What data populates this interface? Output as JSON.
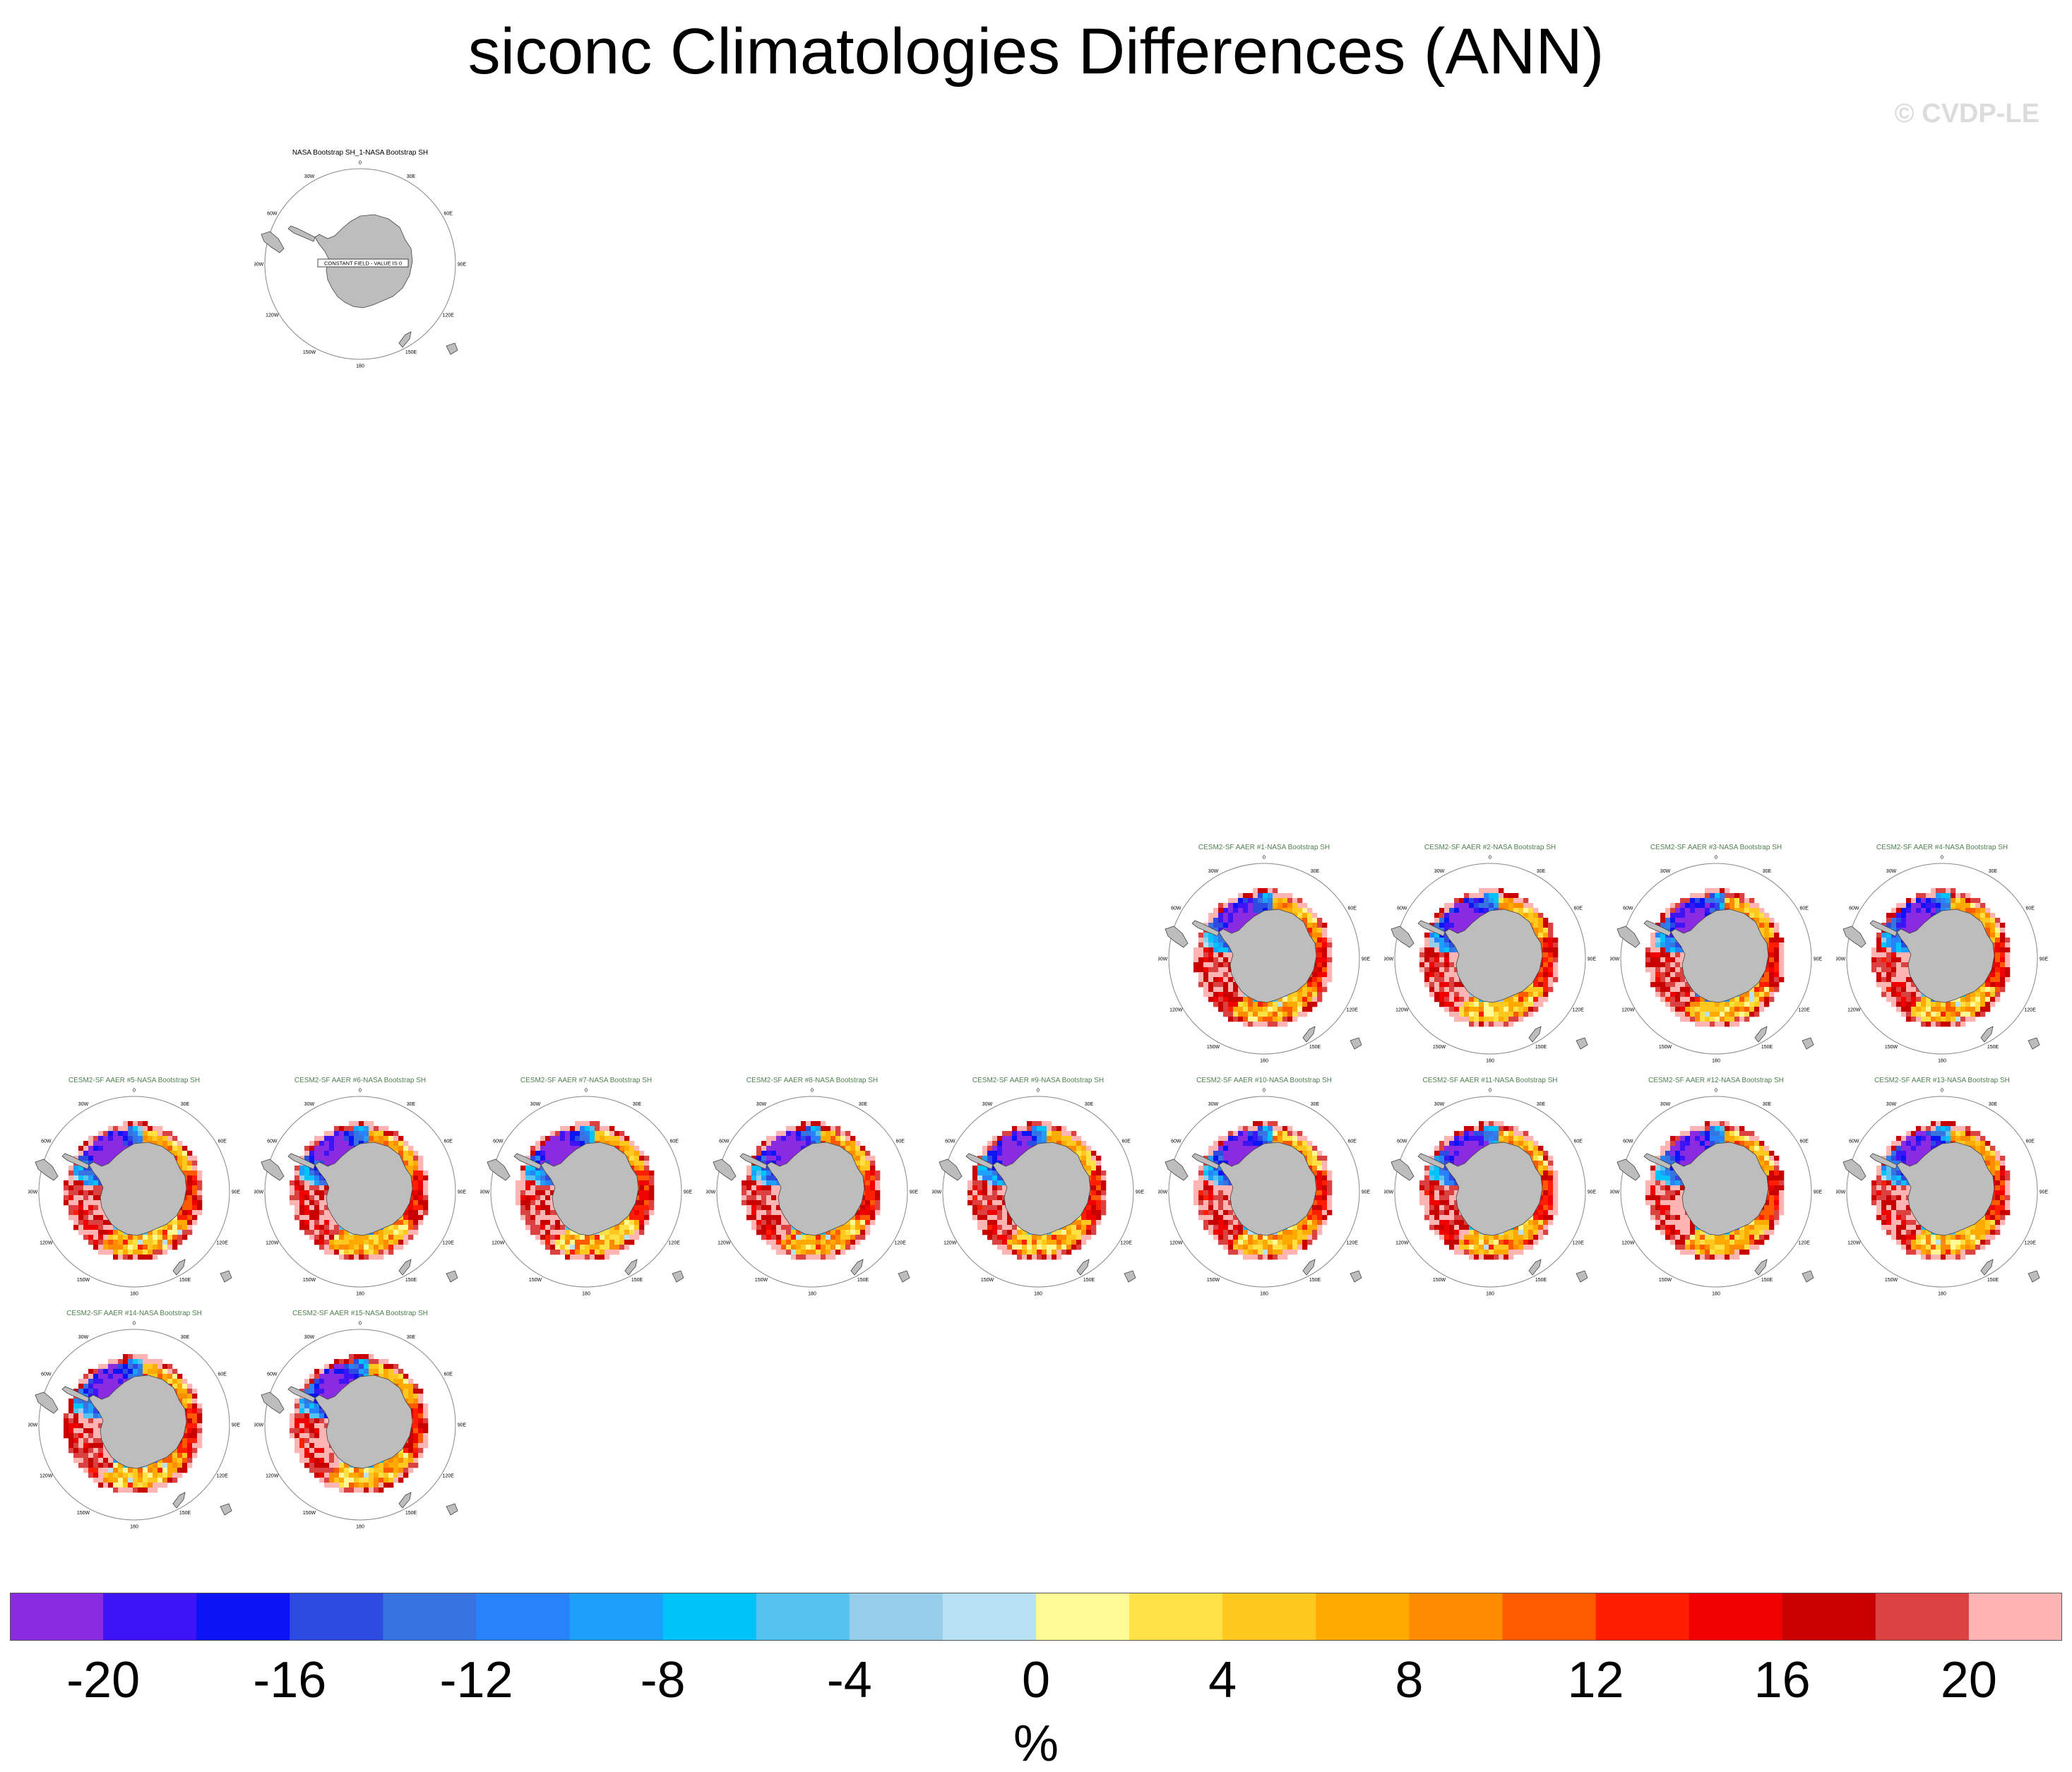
{
  "title": "siconc Climatologies Differences (ANN)",
  "watermark": "© CVDP-LE",
  "colorbar": {
    "unit": "%",
    "tick_labels": [
      "-20",
      "-16",
      "-12",
      "-8",
      "-4",
      "0",
      "4",
      "8",
      "12",
      "16",
      "20"
    ],
    "colors": [
      "#8a2be2",
      "#3c14f5",
      "#0a14f5",
      "#2d4be1",
      "#3773e1",
      "#2882fa",
      "#1ea0fa",
      "#00c3fa",
      "#55c3f0",
      "#96cdeb",
      "#b9e1f5",
      "#fffa96",
      "#ffe145",
      "#ffc81e",
      "#ffaa00",
      "#ff8c00",
      "#ff5a00",
      "#ff1e00",
      "#f00000",
      "#c80000",
      "#dc4141",
      "#ffb4b4"
    ]
  },
  "map_labels": {
    "lon": [
      "0",
      "30E",
      "60E",
      "90E",
      "120E",
      "150E",
      "180",
      "150W",
      "120W",
      "90W",
      "60W",
      "30W"
    ],
    "constant_field": "CONSTANT FIELD - VALUE IS 0"
  },
  "panels": [
    {
      "title": "NASA Bootstrap SH_1-NASA Bootstrap SH",
      "kind": "obs"
    },
    {
      "title": "CESM2-SF AAER #1-NASA Bootstrap SH",
      "kind": "model"
    },
    {
      "title": "CESM2-SF AAER #2-NASA Bootstrap SH",
      "kind": "model"
    },
    {
      "title": "CESM2-SF AAER #3-NASA Bootstrap SH",
      "kind": "model"
    },
    {
      "title": "CESM2-SF AAER #4-NASA Bootstrap SH",
      "kind": "model"
    },
    {
      "title": "CESM2-SF AAER #5-NASA Bootstrap SH",
      "kind": "model"
    },
    {
      "title": "CESM2-SF AAER #6-NASA Bootstrap SH",
      "kind": "model"
    },
    {
      "title": "CESM2-SF AAER #7-NASA Bootstrap SH",
      "kind": "model"
    },
    {
      "title": "CESM2-SF AAER #8-NASA Bootstrap SH",
      "kind": "model"
    },
    {
      "title": "CESM2-SF AAER #9-NASA Bootstrap SH",
      "kind": "model"
    },
    {
      "title": "CESM2-SF AAER #10-NASA Bootstrap SH",
      "kind": "model"
    },
    {
      "title": "CESM2-SF AAER #11-NASA Bootstrap SH",
      "kind": "model"
    },
    {
      "title": "CESM2-SF AAER #12-NASA Bootstrap SH",
      "kind": "model"
    },
    {
      "title": "CESM2-SF AAER #13-NASA Bootstrap SH",
      "kind": "model"
    },
    {
      "title": "CESM2-SF AAER #14-NASA Bootstrap SH",
      "kind": "model"
    },
    {
      "title": "CESM2-SF AAER #15-NASA Bootstrap SH",
      "kind": "model"
    }
  ],
  "chart_data": {
    "type": "heatmap",
    "title": "siconc Climatologies Differences (ANN)",
    "projection": "south polar stereographic",
    "variable": "siconc",
    "units": "%",
    "color_range": [
      -20,
      20
    ],
    "contour_interval": 2,
    "panel_count": 16
  }
}
